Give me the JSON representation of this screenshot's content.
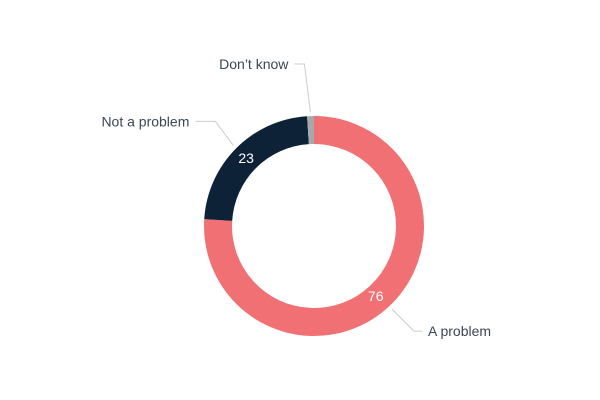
{
  "chart_data": {
    "type": "pie",
    "variant": "donut",
    "slices": [
      {
        "label": "A problem",
        "value": 76,
        "color": "#f07073",
        "value_label": "76",
        "value_label_color": "#ffffff"
      },
      {
        "label": "Not a problem",
        "value": 23,
        "color": "#0d2137",
        "value_label": "23",
        "value_label_color": "#ffffff"
      },
      {
        "label": "Don’t know",
        "value": 1,
        "color": "#a7aaad",
        "value_label": "",
        "value_label_color": "#ffffff"
      }
    ],
    "start": "top",
    "direction": "clockwise",
    "legend": "none",
    "label_placement": "outside with leader lines"
  }
}
